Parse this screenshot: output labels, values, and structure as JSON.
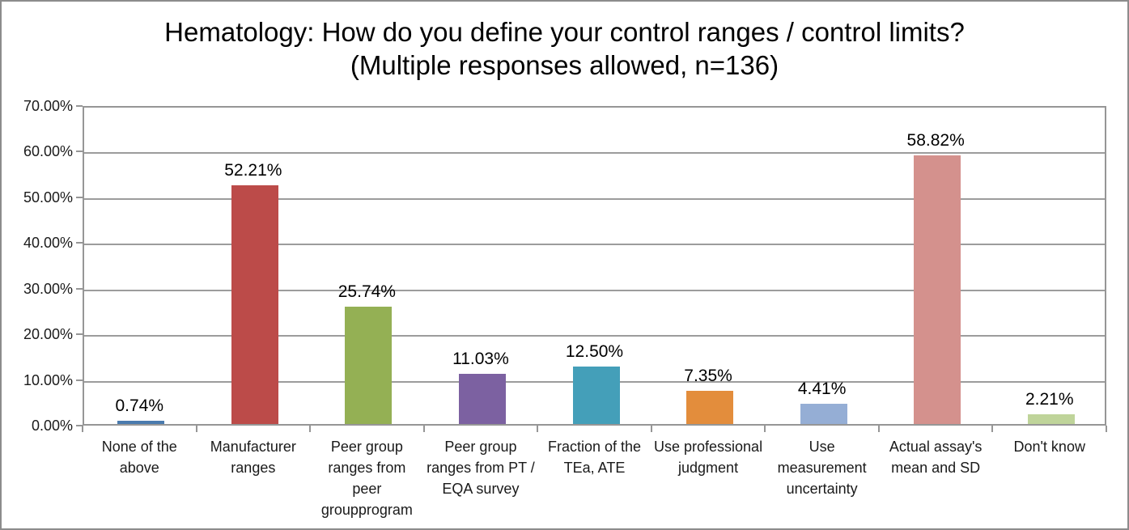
{
  "chart_data": {
    "type": "bar",
    "title": "Hematology: How do you define your control ranges / control limits? (Multiple responses allowed, n=136)",
    "n": 136,
    "categories": [
      "None of the above",
      "Manufacturer ranges",
      "Peer group ranges from peer groupprogram",
      "Peer group ranges from PT / EQA survey",
      "Fraction of the TEa, ATE",
      "Use professional judgment",
      "Use measurement uncertainty",
      "Actual assay's mean and SD",
      "Don't know"
    ],
    "category_lines": [
      [
        "None of the",
        "above"
      ],
      [
        "Manufacturer",
        "ranges"
      ],
      [
        "Peer group",
        "ranges from",
        "peer",
        "groupprogram"
      ],
      [
        "Peer group",
        "ranges from PT /",
        "EQA survey"
      ],
      [
        "Fraction of the",
        "TEa, ATE"
      ],
      [
        "Use professional",
        "judgment"
      ],
      [
        "Use",
        "measurement",
        "uncertainty"
      ],
      [
        "Actual assay's",
        "mean and SD"
      ],
      [
        "Don't know"
      ]
    ],
    "values": [
      0.74,
      52.21,
      25.74,
      11.03,
      12.5,
      7.35,
      4.41,
      58.82,
      2.21
    ],
    "data_labels": [
      "0.74%",
      "52.21%",
      "25.74%",
      "11.03%",
      "12.50%",
      "7.35%",
      "4.41%",
      "58.82%",
      "2.21%"
    ],
    "bar_colors": [
      "#4A7BAE",
      "#BC4B49",
      "#94B054",
      "#7C61A1",
      "#449FB9",
      "#E38D3C",
      "#95AED5",
      "#D4918D",
      "#BFD49A"
    ],
    "ylim": [
      0,
      70
    ],
    "ytick_values": [
      0,
      10,
      20,
      30,
      40,
      50,
      60,
      70
    ],
    "ytick_labels": [
      "0.00%",
      "10.00%",
      "20.00%",
      "30.00%",
      "40.00%",
      "50.00%",
      "60.00%",
      "70.00%"
    ],
    "grid": true,
    "legend": "none",
    "gridline_color": "#9c9c9c",
    "axis_color": "#969696",
    "xlabel": "",
    "ylabel": ""
  }
}
